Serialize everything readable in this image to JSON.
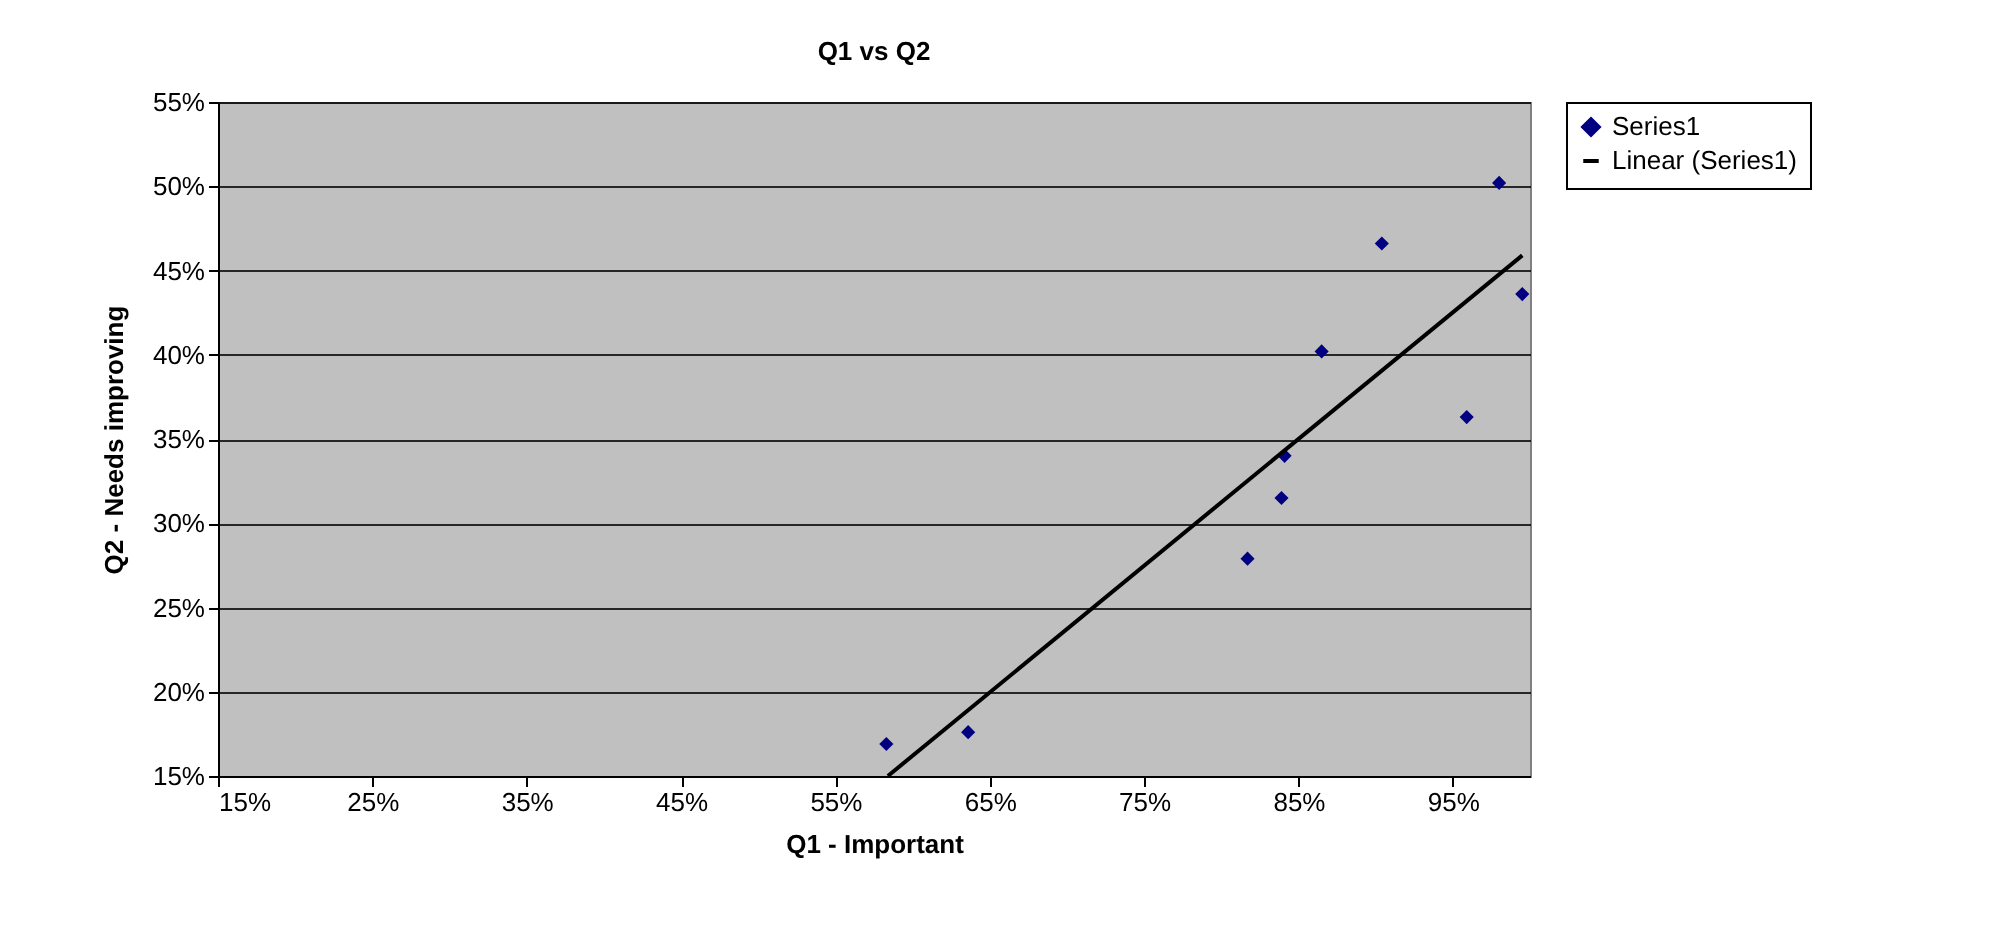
{
  "chart_data": {
    "type": "scatter",
    "title": "Q1 vs Q2",
    "xlabel": "Q1 - Important",
    "ylabel": "Q2 - Needs improving",
    "series": [
      {
        "name": "Series1",
        "color": "#000080",
        "marker": "diamond",
        "x": [
          58.3,
          63.6,
          81.7,
          83.9,
          84.1,
          86.5,
          90.4,
          95.9,
          98.0,
          99.5
        ],
        "values": [
          16.9,
          17.6,
          27.9,
          31.5,
          34.0,
          40.2,
          46.6,
          36.3,
          50.2,
          43.6
        ]
      },
      {
        "name": "Linear (Series1)",
        "type": "line",
        "color": "#000000",
        "marker": "none",
        "x": [
          58.4,
          99.5
        ],
        "values": [
          15,
          45.9
        ]
      }
    ],
    "xlim": [
      15,
      100
    ],
    "ylim": [
      15,
      55
    ],
    "xticks": [
      {
        "value": 15,
        "label": "15%"
      },
      {
        "value": 25,
        "label": "25%"
      },
      {
        "value": 35,
        "label": "35%"
      },
      {
        "value": 45,
        "label": "45%"
      },
      {
        "value": 55,
        "label": "55%"
      },
      {
        "value": 65,
        "label": "65%"
      },
      {
        "value": 75,
        "label": "75%"
      },
      {
        "value": 85,
        "label": "85%"
      },
      {
        "value": 95,
        "label": "95%"
      }
    ],
    "yticks": [
      {
        "value": 15,
        "label": "15%"
      },
      {
        "value": 20,
        "label": "20%"
      },
      {
        "value": 25,
        "label": "25%"
      },
      {
        "value": 30,
        "label": "30%"
      },
      {
        "value": 35,
        "label": "35%"
      },
      {
        "value": 40,
        "label": "40%"
      },
      {
        "value": 45,
        "label": "45%"
      },
      {
        "value": 50,
        "label": "50%"
      },
      {
        "value": 55,
        "label": "55%"
      }
    ],
    "grid": "y",
    "legend": "right"
  }
}
